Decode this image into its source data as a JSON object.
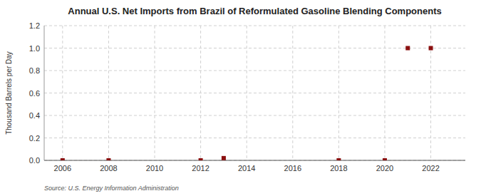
{
  "chart_data": {
    "type": "scatter",
    "title": "Annual U.S. Net Imports from Brazil of Reformulated Gasoline Blending Components",
    "ylabel": "Thousand Barrels per Day",
    "source": "Source: U.S. Energy Information Administration",
    "x": [
      2006,
      2008,
      2012,
      2013,
      2018,
      2020,
      2021,
      2022
    ],
    "values": [
      0.0,
      0.0,
      0.0,
      0.02,
      0.0,
      0.0,
      1.0,
      1.0
    ],
    "color": "#8B1010",
    "marker": "square",
    "grid": true,
    "xlim": [
      2005.2,
      2023.5
    ],
    "ylim": [
      0,
      1.2
    ],
    "xticks": [
      2006,
      2008,
      2010,
      2012,
      2014,
      2016,
      2018,
      2020,
      2022
    ],
    "yticks": [
      {
        "value": 0.0,
        "label": "0.0"
      },
      0.2,
      0.4,
      0.6,
      0.8,
      {
        "value": 1.0,
        "label": "1.0"
      },
      1.2
    ]
  }
}
